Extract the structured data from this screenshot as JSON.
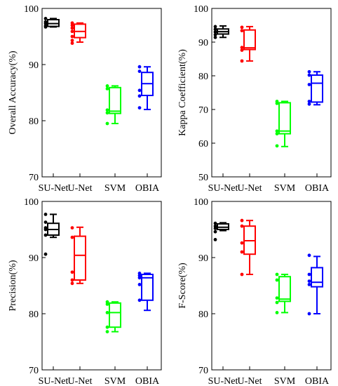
{
  "colors": {
    "SU-Net": "#000000",
    "U-Net": "#ff0000",
    "SVM": "#00ff00",
    "OBIA": "#0000ff"
  },
  "chart_data": [
    {
      "type": "box",
      "ylabel": "Overall Accuracy(%)",
      "ylim": [
        70,
        100
      ],
      "yticks": [
        70,
        80,
        90,
        100
      ],
      "categories": [
        "SU-Net",
        "U-Net",
        "SVM",
        "OBIA"
      ],
      "series": [
        {
          "name": "SU-Net",
          "points": [
            98.2,
            97.6,
            97.3,
            96.9,
            96.7
          ],
          "box": {
            "min": 96.7,
            "q1": 96.8,
            "median": 97.3,
            "q3": 98.0,
            "max": 98.2
          }
        },
        {
          "name": "U-Net",
          "points": [
            97.4,
            97.0,
            96.5,
            95.9,
            95.0,
            94.3,
            93.8
          ],
          "box": {
            "min": 94.0,
            "q1": 94.8,
            "median": 95.9,
            "q3": 97.2,
            "max": 97.4
          }
        },
        {
          "name": "SVM",
          "points": [
            86.2,
            85.7,
            81.9,
            81.4,
            79.5
          ],
          "box": {
            "min": 79.5,
            "q1": 81.3,
            "median": 81.7,
            "q3": 85.9,
            "max": 86.2
          }
        },
        {
          "name": "OBIA",
          "points": [
            89.6,
            88.8,
            85.4,
            84.4,
            82.3
          ],
          "box": {
            "min": 82.0,
            "q1": 84.5,
            "median": 86.6,
            "q3": 88.6,
            "max": 89.6
          }
        }
      ]
    },
    {
      "type": "box",
      "ylabel": "Kappa Coefficient(%)",
      "ylim": [
        50,
        100
      ],
      "yticks": [
        50,
        60,
        70,
        80,
        90,
        100
      ],
      "categories": [
        "SU-Net",
        "U-Net",
        "SVM",
        "OBIA"
      ],
      "series": [
        {
          "name": "SU-Net",
          "points": [
            94.6,
            93.8,
            93.0,
            92.2,
            91.4
          ],
          "box": {
            "min": 91.4,
            "q1": 92.4,
            "median": 93.1,
            "q3": 93.9,
            "max": 94.8
          }
        },
        {
          "name": "U-Net",
          "points": [
            94.4,
            93.4,
            88.4,
            87.6,
            84.4
          ],
          "box": {
            "min": 84.4,
            "q1": 87.8,
            "median": 88.3,
            "q3": 93.6,
            "max": 94.6
          }
        },
        {
          "name": "SVM",
          "points": [
            72.4,
            71.8,
            63.6,
            62.8,
            59.2
          ],
          "box": {
            "min": 59.0,
            "q1": 62.8,
            "median": 63.6,
            "q3": 72.0,
            "max": 72.4
          }
        },
        {
          "name": "OBIA",
          "points": [
            81.2,
            80.2,
            77.4,
            72.4,
            71.6
          ],
          "box": {
            "min": 71.4,
            "q1": 72.2,
            "median": 77.8,
            "q3": 80.2,
            "max": 81.2
          }
        }
      ]
    },
    {
      "type": "box",
      "ylabel": "Precision(%)",
      "ylim": [
        70,
        100
      ],
      "yticks": [
        70,
        80,
        90,
        100
      ],
      "categories": [
        "SU-Net",
        "U-Net",
        "SVM",
        "OBIA"
      ],
      "series": [
        {
          "name": "SU-Net",
          "points": [
            97.7,
            96.3,
            95.3,
            95.0,
            94.0,
            90.6
          ],
          "box": {
            "min": 93.6,
            "q1": 94.0,
            "median": 95.0,
            "q3": 96.1,
            "max": 97.7
          }
        },
        {
          "name": "U-Net",
          "points": [
            95.3,
            93.6,
            87.4,
            86.0,
            85.4
          ],
          "box": {
            "min": 85.4,
            "q1": 86.0,
            "median": 90.4,
            "q3": 93.8,
            "max": 95.4
          }
        },
        {
          "name": "SVM",
          "points": [
            82.1,
            81.7,
            80.2,
            77.6,
            76.8
          ],
          "box": {
            "min": 76.8,
            "q1": 77.6,
            "median": 80.2,
            "q3": 81.9,
            "max": 82.1
          }
        },
        {
          "name": "OBIA",
          "points": [
            87.2,
            86.8,
            86.4,
            85.2,
            82.4
          ],
          "box": {
            "min": 80.6,
            "q1": 82.4,
            "median": 86.4,
            "q3": 87.0,
            "max": 87.2
          }
        }
      ]
    },
    {
      "type": "box",
      "ylabel": "F-Score(%)",
      "ylim": [
        70,
        100
      ],
      "yticks": [
        70,
        80,
        90,
        100
      ],
      "categories": [
        "SU-Net",
        "U-Net",
        "SVM",
        "OBIA"
      ],
      "series": [
        {
          "name": "SU-Net",
          "points": [
            96.1,
            95.6,
            95.2,
            94.6,
            93.2
          ],
          "box": {
            "min": 94.8,
            "q1": 95.0,
            "median": 95.4,
            "q3": 96.0,
            "max": 96.2
          }
        },
        {
          "name": "U-Net",
          "points": [
            96.6,
            95.6,
            92.6,
            91.0,
            87.0
          ],
          "box": {
            "min": 87.0,
            "q1": 90.6,
            "median": 93.0,
            "q3": 95.6,
            "max": 96.6
          }
        },
        {
          "name": "SVM",
          "points": [
            87.0,
            86.0,
            82.8,
            82.0,
            80.2
          ],
          "box": {
            "min": 80.2,
            "q1": 82.2,
            "median": 82.6,
            "q3": 86.6,
            "max": 87.0
          }
        },
        {
          "name": "OBIA",
          "points": [
            90.4,
            87.0,
            85.8,
            85.2,
            80.0
          ],
          "box": {
            "min": 80.0,
            "q1": 84.8,
            "median": 85.6,
            "q3": 88.2,
            "max": 90.2
          }
        }
      ]
    }
  ]
}
